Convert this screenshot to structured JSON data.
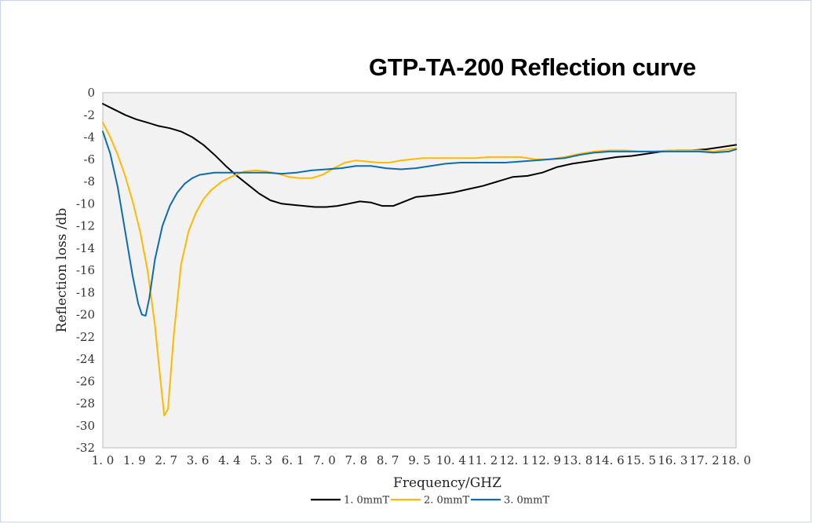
{
  "chart_data": {
    "type": "line",
    "title": "GTP-TA-200 Reflection curve",
    "xlabel": "Frequency/GHZ",
    "ylabel": "Reflection loss /db",
    "xlim": [
      1.0,
      18.0
    ],
    "ylim": [
      -32,
      0
    ],
    "x_tick_labels": [
      "1. 0",
      "1. 9",
      "2. 7",
      "3. 6",
      "4. 4",
      "5. 3",
      "6. 1",
      "7. 0",
      "7. 8",
      "8. 7",
      "9. 5",
      "10. 4",
      "11. 2",
      "12. 1",
      "12. 9",
      "13. 8",
      "14. 6",
      "15. 5",
      "16. 3",
      "17. 2",
      "18. 0"
    ],
    "y_tick_labels": [
      "0",
      "-2",
      "-4",
      "-6",
      "-8",
      "-10",
      "-12",
      "-14",
      "-16",
      "-18",
      "-20",
      "-22",
      "-24",
      "-26",
      "-28",
      "-30",
      "-32"
    ],
    "grid": false,
    "legend_position": "bottom",
    "plot_background": "#f2f2f2",
    "series": [
      {
        "name": "1. 0mmT",
        "color": "#000000",
        "x": [
          1.0,
          1.3,
          1.6,
          1.9,
          2.2,
          2.5,
          2.8,
          3.1,
          3.4,
          3.7,
          4.0,
          4.3,
          4.6,
          4.9,
          5.2,
          5.5,
          5.8,
          6.1,
          6.4,
          6.7,
          7.0,
          7.3,
          7.6,
          7.9,
          8.2,
          8.5,
          8.8,
          9.1,
          9.4,
          9.7,
          10.0,
          10.4,
          10.8,
          11.2,
          11.6,
          12.0,
          12.4,
          12.8,
          13.2,
          13.6,
          14.0,
          14.4,
          14.8,
          15.2,
          15.6,
          16.0,
          16.4,
          16.8,
          17.2,
          17.6,
          18.0
        ],
        "values": [
          -1.0,
          -1.5,
          -2.0,
          -2.4,
          -2.7,
          -3.0,
          -3.2,
          -3.5,
          -4.0,
          -4.7,
          -5.6,
          -6.6,
          -7.5,
          -8.3,
          -9.1,
          -9.7,
          -10.0,
          -10.1,
          -10.2,
          -10.3,
          -10.3,
          -10.2,
          -10.0,
          -9.8,
          -9.9,
          -10.2,
          -10.2,
          -9.8,
          -9.4,
          -9.3,
          -9.2,
          -9.0,
          -8.7,
          -8.4,
          -8.0,
          -7.6,
          -7.5,
          -7.2,
          -6.7,
          -6.4,
          -6.2,
          -6.0,
          -5.8,
          -5.7,
          -5.5,
          -5.3,
          -5.2,
          -5.2,
          -5.1,
          -4.9,
          -4.7
        ]
      },
      {
        "name": "2. 0mmT",
        "color": "#ffb900",
        "x": [
          1.0,
          1.2,
          1.4,
          1.6,
          1.8,
          2.0,
          2.2,
          2.4,
          2.55,
          2.65,
          2.75,
          2.9,
          3.1,
          3.3,
          3.5,
          3.7,
          3.9,
          4.2,
          4.5,
          4.8,
          5.1,
          5.4,
          5.7,
          6.0,
          6.3,
          6.6,
          6.9,
          7.2,
          7.5,
          7.8,
          8.1,
          8.4,
          8.7,
          9.0,
          9.3,
          9.6,
          9.9,
          10.2,
          10.6,
          11.0,
          11.4,
          11.8,
          12.2,
          12.6,
          13.0,
          13.4,
          13.8,
          14.2,
          14.6,
          15.0,
          15.4,
          15.8,
          16.2,
          16.6,
          17.0,
          17.4,
          17.8,
          18.0
        ],
        "values": [
          -2.7,
          -4.0,
          -5.6,
          -7.5,
          -9.8,
          -12.5,
          -16.0,
          -21.0,
          -26.0,
          -29.1,
          -28.5,
          -22.0,
          -15.5,
          -12.5,
          -10.8,
          -9.6,
          -8.8,
          -8.0,
          -7.5,
          -7.1,
          -7.0,
          -7.1,
          -7.3,
          -7.6,
          -7.7,
          -7.7,
          -7.4,
          -6.8,
          -6.3,
          -6.1,
          -6.2,
          -6.3,
          -6.3,
          -6.1,
          -6.0,
          -5.9,
          -5.9,
          -5.9,
          -5.9,
          -5.9,
          -5.8,
          -5.8,
          -5.8,
          -6.0,
          -6.0,
          -5.8,
          -5.5,
          -5.3,
          -5.2,
          -5.2,
          -5.3,
          -5.3,
          -5.2,
          -5.2,
          -5.2,
          -5.3,
          -5.1,
          -5.0
        ]
      },
      {
        "name": "3. 0mmT",
        "color": "#0f6cb0",
        "x": [
          1.0,
          1.2,
          1.4,
          1.6,
          1.8,
          1.95,
          2.05,
          2.15,
          2.25,
          2.4,
          2.6,
          2.8,
          3.0,
          3.2,
          3.4,
          3.6,
          3.8,
          4.0,
          4.3,
          4.6,
          5.0,
          5.4,
          5.8,
          6.2,
          6.6,
          7.0,
          7.4,
          7.8,
          8.2,
          8.6,
          9.0,
          9.4,
          9.8,
          10.2,
          10.6,
          11.0,
          11.4,
          11.8,
          12.2,
          12.6,
          13.0,
          13.4,
          13.8,
          14.2,
          14.6,
          15.0,
          15.4,
          15.8,
          16.2,
          16.6,
          17.0,
          17.4,
          17.8,
          18.0
        ],
        "values": [
          -3.5,
          -5.5,
          -8.5,
          -12.5,
          -16.5,
          -19.0,
          -20.0,
          -20.1,
          -18.5,
          -15.0,
          -12.0,
          -10.2,
          -9.0,
          -8.2,
          -7.7,
          -7.4,
          -7.3,
          -7.2,
          -7.2,
          -7.2,
          -7.2,
          -7.2,
          -7.3,
          -7.2,
          -7.0,
          -6.9,
          -6.8,
          -6.6,
          -6.6,
          -6.8,
          -6.9,
          -6.8,
          -6.6,
          -6.4,
          -6.3,
          -6.3,
          -6.3,
          -6.3,
          -6.2,
          -6.1,
          -6.0,
          -5.9,
          -5.6,
          -5.4,
          -5.3,
          -5.3,
          -5.3,
          -5.3,
          -5.3,
          -5.3,
          -5.3,
          -5.4,
          -5.3,
          -5.1
        ]
      }
    ]
  }
}
